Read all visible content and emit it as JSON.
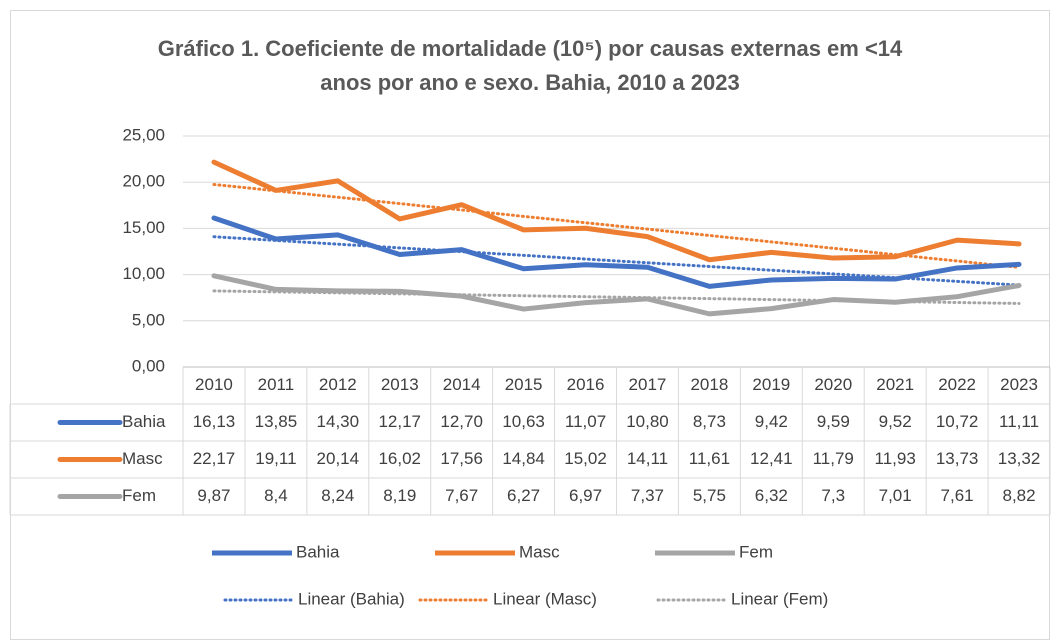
{
  "chart_data": {
    "type": "line",
    "title": "Gráfico 1. Coeficiente de  mortalidade (10⁵) por causas externas em <14 anos por ano e sexo. Bahia, 2010 a 2023",
    "categories": [
      "2010",
      "2011",
      "2012",
      "2013",
      "2014",
      "2015",
      "2016",
      "2017",
      "2018",
      "2019",
      "2020",
      "2021",
      "2022",
      "2023"
    ],
    "series": [
      {
        "name": "Bahia",
        "color": "#4472c4",
        "values": [
          16.13,
          13.85,
          14.3,
          12.17,
          12.7,
          10.63,
          11.07,
          10.8,
          8.73,
          9.42,
          9.59,
          9.52,
          10.72,
          11.11
        ],
        "value_labels": [
          "16,13",
          "13,85",
          "14,30",
          "12,17",
          "12,70",
          "10,63",
          "11,07",
          "10,80",
          "8,73",
          "9,42",
          "9,59",
          "9,52",
          "10,72",
          "11,11"
        ],
        "trendline": {
          "type": "linear",
          "name": "Linear (Bahia)"
        }
      },
      {
        "name": "Masc",
        "color": "#ed7d31",
        "values": [
          22.17,
          19.11,
          20.14,
          16.02,
          17.56,
          14.84,
          15.02,
          14.11,
          11.61,
          12.41,
          11.79,
          11.93,
          13.73,
          13.32
        ],
        "value_labels": [
          "22,17",
          "19,11",
          "20,14",
          "16,02",
          "17,56",
          "14,84",
          "15,02",
          "14,11",
          "11,61",
          "12,41",
          "11,79",
          "11,93",
          "13,73",
          "13,32"
        ],
        "trendline": {
          "type": "linear",
          "name": "Linear (Masc)"
        }
      },
      {
        "name": "Fem",
        "color": "#a5a5a5",
        "values": [
          9.87,
          8.4,
          8.24,
          8.19,
          7.67,
          6.27,
          6.97,
          7.37,
          5.75,
          6.32,
          7.3,
          7.01,
          7.61,
          8.82
        ],
        "value_labels": [
          "9,87",
          "8,4",
          "8,24",
          "8,19",
          "7,67",
          "6,27",
          "6,97",
          "7,37",
          "5,75",
          "6,32",
          "7,3",
          "7,01",
          "7,61",
          "8,82"
        ],
        "trendline": {
          "type": "linear",
          "name": "Linear (Fem)"
        }
      }
    ],
    "ylim": [
      0,
      25
    ],
    "yticks": [
      {
        "value": 0,
        "label": "0,00"
      },
      {
        "value": 5,
        "label": "5,00"
      },
      {
        "value": 10,
        "label": "10,00"
      },
      {
        "value": 15,
        "label": "15,00"
      },
      {
        "value": 20,
        "label": "20,00"
      },
      {
        "value": 25,
        "label": "25,00"
      }
    ],
    "grid": true,
    "data_table": true,
    "legend": "bottom"
  }
}
